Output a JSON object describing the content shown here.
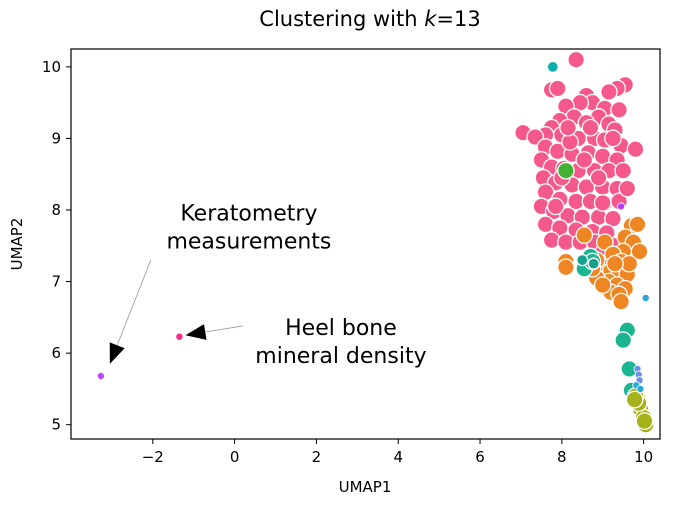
{
  "chart_data": {
    "type": "scatter",
    "title_prefix": "Clustering with ",
    "title_var": "k",
    "title_suffix": "=13",
    "xlabel": "UMAP1",
    "ylabel": "UMAP2",
    "xlim": [
      -4.0,
      10.4
    ],
    "ylim": [
      4.8,
      10.25
    ],
    "xticks": [
      -2,
      0,
      2,
      4,
      6,
      8,
      10
    ],
    "xtick_labels": [
      "−2",
      "0",
      "2",
      "4",
      "6",
      "8",
      "10"
    ],
    "yticks": [
      5,
      6,
      7,
      8,
      9,
      10
    ],
    "ytick_labels": [
      "5",
      "6",
      "7",
      "8",
      "9",
      "10"
    ],
    "grid": false,
    "legend": "none",
    "annotations": [
      {
        "lines": [
          "Keratometry",
          "measurements"
        ],
        "text_at": [
          0.35,
          7.85
        ],
        "arrow_from": [
          -2.05,
          7.3
        ],
        "arrow_to": [
          -3.05,
          5.85
        ]
      },
      {
        "lines": [
          "Heel bone",
          "mineral density"
        ],
        "text_at": [
          2.6,
          6.25
        ],
        "arrow_from": [
          0.2,
          6.38
        ],
        "arrow_to": [
          -1.2,
          6.25
        ]
      }
    ],
    "series": [
      {
        "color": "#f5588a",
        "size": "large",
        "points": [
          [
            8.35,
            10.1
          ],
          [
            7.75,
            9.68
          ],
          [
            7.9,
            9.7
          ],
          [
            9.55,
            9.75
          ],
          [
            9.35,
            9.7
          ],
          [
            9.15,
            9.65
          ],
          [
            8.6,
            9.6
          ],
          [
            8.75,
            9.5
          ],
          [
            8.45,
            9.5
          ],
          [
            8.1,
            9.45
          ],
          [
            9.05,
            9.42
          ],
          [
            9.4,
            9.4
          ],
          [
            8.9,
            9.3
          ],
          [
            8.3,
            9.3
          ],
          [
            7.95,
            9.25
          ],
          [
            8.6,
            9.22
          ],
          [
            9.15,
            9.2
          ],
          [
            9.3,
            9.12
          ],
          [
            7.75,
            9.15
          ],
          [
            7.6,
            9.05
          ],
          [
            7.05,
            9.08
          ],
          [
            7.35,
            9.02
          ],
          [
            8.0,
            9.05
          ],
          [
            8.4,
            9.0
          ],
          [
            8.8,
            9.0
          ],
          [
            9.05,
            8.98
          ],
          [
            9.45,
            8.9
          ],
          [
            9.8,
            8.85
          ],
          [
            7.6,
            8.88
          ],
          [
            7.9,
            8.82
          ],
          [
            8.25,
            8.78
          ],
          [
            8.65,
            8.8
          ],
          [
            9.0,
            8.75
          ],
          [
            9.35,
            8.7
          ],
          [
            7.5,
            8.7
          ],
          [
            7.75,
            8.6
          ],
          [
            8.05,
            8.58
          ],
          [
            8.4,
            8.55
          ],
          [
            8.8,
            8.55
          ],
          [
            9.15,
            8.55
          ],
          [
            9.5,
            8.55
          ],
          [
            7.55,
            8.45
          ],
          [
            7.85,
            8.38
          ],
          [
            8.25,
            8.35
          ],
          [
            8.6,
            8.32
          ],
          [
            9.0,
            8.32
          ],
          [
            9.35,
            8.3
          ],
          [
            7.6,
            8.25
          ],
          [
            7.95,
            8.15
          ],
          [
            8.35,
            8.12
          ],
          [
            8.7,
            8.12
          ],
          [
            9.05,
            8.1
          ],
          [
            9.4,
            8.12
          ],
          [
            7.5,
            8.05
          ],
          [
            7.8,
            7.98
          ],
          [
            8.15,
            7.92
          ],
          [
            8.5,
            7.9
          ],
          [
            8.9,
            7.9
          ],
          [
            9.25,
            7.88
          ],
          [
            7.6,
            7.8
          ],
          [
            7.95,
            7.75
          ],
          [
            8.35,
            7.72
          ],
          [
            8.75,
            7.7
          ],
          [
            9.1,
            7.68
          ],
          [
            7.75,
            7.58
          ],
          [
            8.1,
            7.55
          ],
          [
            8.45,
            7.55
          ],
          [
            8.8,
            7.55
          ],
          [
            9.0,
            7.4
          ],
          [
            9.3,
            7.5
          ],
          [
            8.2,
            8.95
          ],
          [
            8.7,
            9.15
          ],
          [
            8.0,
            8.45
          ],
          [
            8.55,
            8.7
          ],
          [
            9.25,
            9.0
          ],
          [
            7.85,
            8.05
          ],
          [
            8.9,
            8.45
          ],
          [
            9.6,
            8.3
          ],
          [
            8.15,
            9.15
          ],
          [
            9.0,
            8.1
          ]
        ]
      },
      {
        "color": "#ef8624",
        "size": "large",
        "points": [
          [
            8.55,
            7.65
          ],
          [
            9.7,
            7.78
          ],
          [
            9.85,
            7.8
          ],
          [
            9.55,
            7.62
          ],
          [
            9.75,
            7.55
          ],
          [
            9.9,
            7.42
          ],
          [
            9.5,
            7.42
          ],
          [
            9.05,
            7.55
          ],
          [
            9.25,
            7.38
          ],
          [
            9.45,
            7.28
          ],
          [
            9.05,
            7.2
          ],
          [
            8.85,
            7.3
          ],
          [
            9.2,
            7.15
          ],
          [
            9.4,
            7.1
          ],
          [
            9.6,
            7.1
          ],
          [
            9.15,
            7.0
          ],
          [
            9.35,
            6.95
          ],
          [
            8.85,
            7.05
          ],
          [
            8.75,
            7.18
          ],
          [
            9.55,
            6.9
          ],
          [
            9.2,
            6.85
          ],
          [
            9.4,
            6.82
          ],
          [
            9.45,
            6.72
          ],
          [
            8.1,
            7.28
          ],
          [
            8.1,
            7.2
          ],
          [
            9.0,
            6.95
          ],
          [
            9.65,
            7.25
          ],
          [
            9.3,
            7.25
          ]
        ]
      },
      {
        "color": "#1bb592",
        "size": "large",
        "points": [
          [
            8.7,
            7.35
          ],
          [
            8.6,
            7.25
          ],
          [
            8.55,
            7.18
          ],
          [
            8.75,
            7.28
          ],
          [
            9.6,
            6.32
          ],
          [
            9.5,
            6.18
          ],
          [
            9.65,
            5.78
          ],
          [
            9.7,
            5.48
          ]
        ]
      },
      {
        "color": "#14a08a",
        "size": "medium",
        "points": [
          [
            8.78,
            7.25
          ],
          [
            8.5,
            7.3
          ]
        ]
      },
      {
        "color": "#0ab0b0",
        "size": "medium",
        "points": [
          [
            7.78,
            10.0
          ]
        ]
      },
      {
        "color": "#44b034",
        "size": "large",
        "points": [
          [
            8.1,
            8.55
          ]
        ]
      },
      {
        "color": "#a6b21a",
        "size": "large",
        "points": [
          [
            9.85,
            5.38
          ],
          [
            9.92,
            5.22
          ],
          [
            10.0,
            5.1
          ],
          [
            10.05,
            5.0
          ],
          [
            9.88,
            5.3
          ],
          [
            9.8,
            5.4
          ],
          [
            10.02,
            5.05
          ],
          [
            9.78,
            5.35
          ]
        ]
      },
      {
        "color": "#6f8ee6",
        "size": "small",
        "points": [
          [
            9.85,
            5.78
          ],
          [
            9.88,
            5.7
          ],
          [
            9.9,
            5.62
          ]
        ]
      },
      {
        "color": "#2aa6d8",
        "size": "small",
        "points": [
          [
            10.05,
            6.77
          ],
          [
            9.82,
            5.55
          ],
          [
            9.92,
            5.5
          ]
        ]
      },
      {
        "color": "#b83cf0",
        "size": "small",
        "points": [
          [
            9.45,
            8.05
          ]
        ]
      },
      {
        "color": "#c148f2",
        "size": "small",
        "points": [
          [
            -3.27,
            5.68
          ]
        ]
      },
      {
        "color": "#f22a88",
        "size": "small",
        "points": [
          [
            -1.35,
            6.23
          ]
        ]
      }
    ]
  }
}
